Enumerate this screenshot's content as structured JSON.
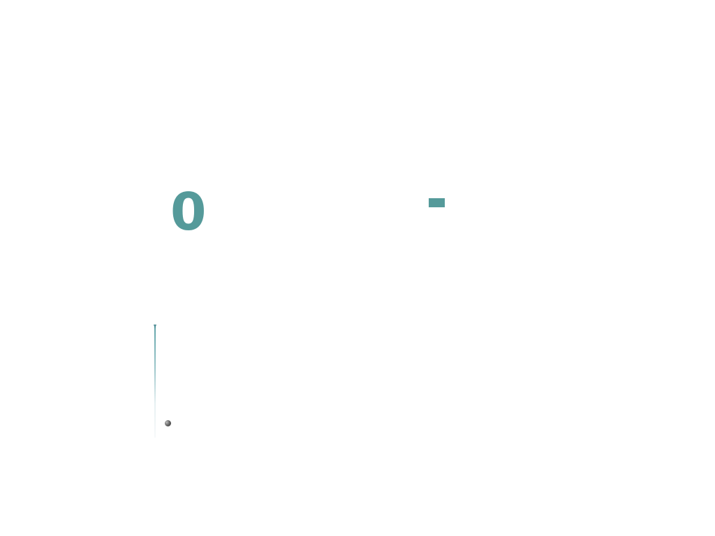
{
  "score": {
    "value": "0"
  },
  "colors": {
    "accent": "#559a9a",
    "background": "#ffffff",
    "track": "#5ea3a8",
    "ball": "#4a4a4a"
  },
  "icons": {
    "minus_button": "minus-icon",
    "ball": "ball-icon"
  }
}
